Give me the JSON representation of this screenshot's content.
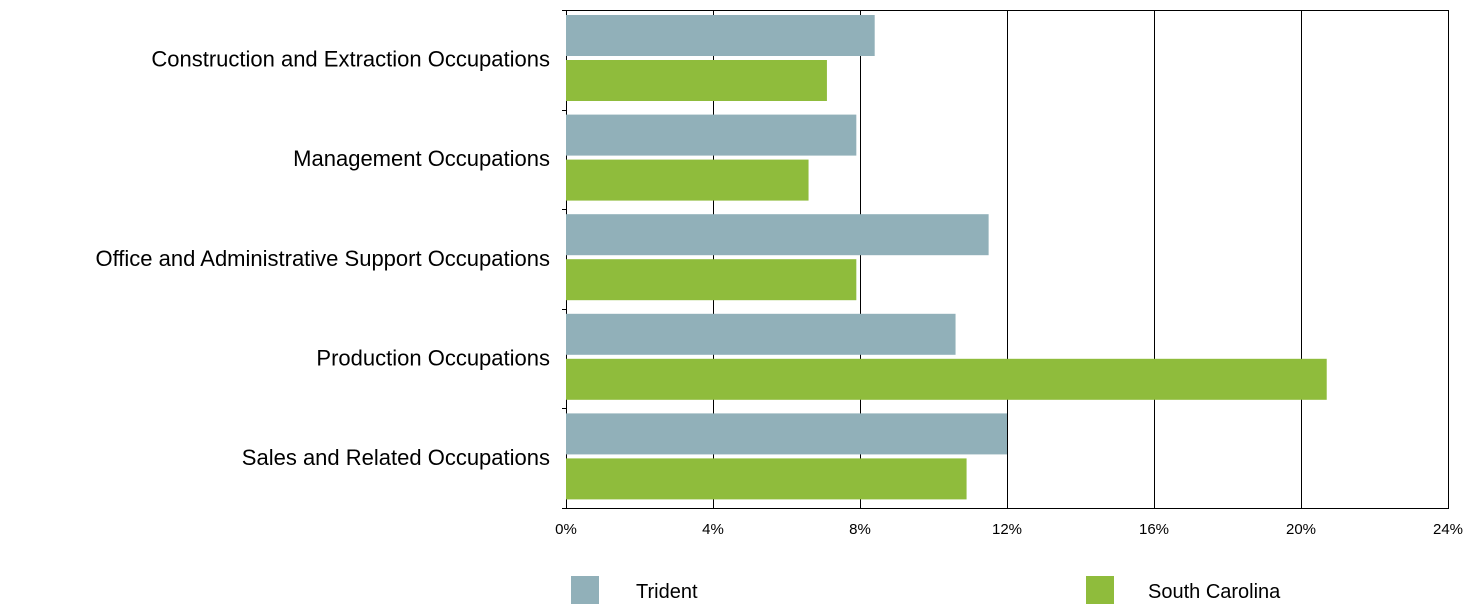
{
  "chart_data": {
    "type": "bar",
    "orientation": "horizontal",
    "categories": [
      "Construction and Extraction Occupations",
      "Management Occupations",
      "Office and Administrative Support Occupations",
      "Production Occupations",
      "Sales and Related Occupations"
    ],
    "series": [
      {
        "name": "Trident",
        "color": "#91b0b9",
        "values": [
          8.4,
          7.9,
          11.5,
          10.6,
          12.0
        ]
      },
      {
        "name": "South Carolina",
        "color": "#8fbc3c",
        "values": [
          7.1,
          6.6,
          7.9,
          20.7,
          10.9
        ]
      }
    ],
    "xlim": [
      0,
      24
    ],
    "x_ticks": [
      0,
      4,
      8,
      12,
      16,
      20,
      24
    ],
    "x_tick_labels": [
      "0%",
      "4%",
      "8%",
      "12%",
      "16%",
      "20%",
      "24%"
    ],
    "grid": true,
    "legend_position": "bottom",
    "title": "",
    "xlabel": "",
    "ylabel": ""
  }
}
